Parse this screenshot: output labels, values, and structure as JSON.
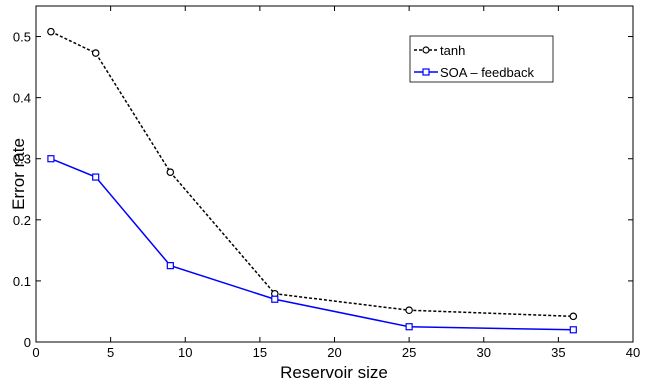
{
  "chart_data": {
    "type": "line",
    "title": "",
    "xlabel": "Reservoir size",
    "ylabel": "Error rate",
    "xlim": [
      0,
      40
    ],
    "ylim": [
      0,
      0.55
    ],
    "xticks": [
      "0",
      "5",
      "10",
      "15",
      "20",
      "25",
      "30",
      "35",
      "40"
    ],
    "yticks": [
      "0",
      "0.1",
      "0.2",
      "0.3",
      "0.4",
      "0.5"
    ],
    "grid": false,
    "legend_position": "top-right",
    "series": [
      {
        "name": "tanh",
        "color": "#000000",
        "style": "dashed",
        "marker": "circle",
        "x": [
          1,
          4,
          9,
          16,
          25,
          36
        ],
        "y": [
          0.508,
          0.473,
          0.278,
          0.079,
          0.052,
          0.042
        ]
      },
      {
        "name": "SOA – feedback",
        "color": "#0000ff",
        "style": "solid",
        "marker": "square",
        "x": [
          1,
          4,
          9,
          16,
          25,
          36
        ],
        "y": [
          0.3,
          0.27,
          0.125,
          0.07,
          0.025,
          0.02
        ]
      }
    ]
  }
}
